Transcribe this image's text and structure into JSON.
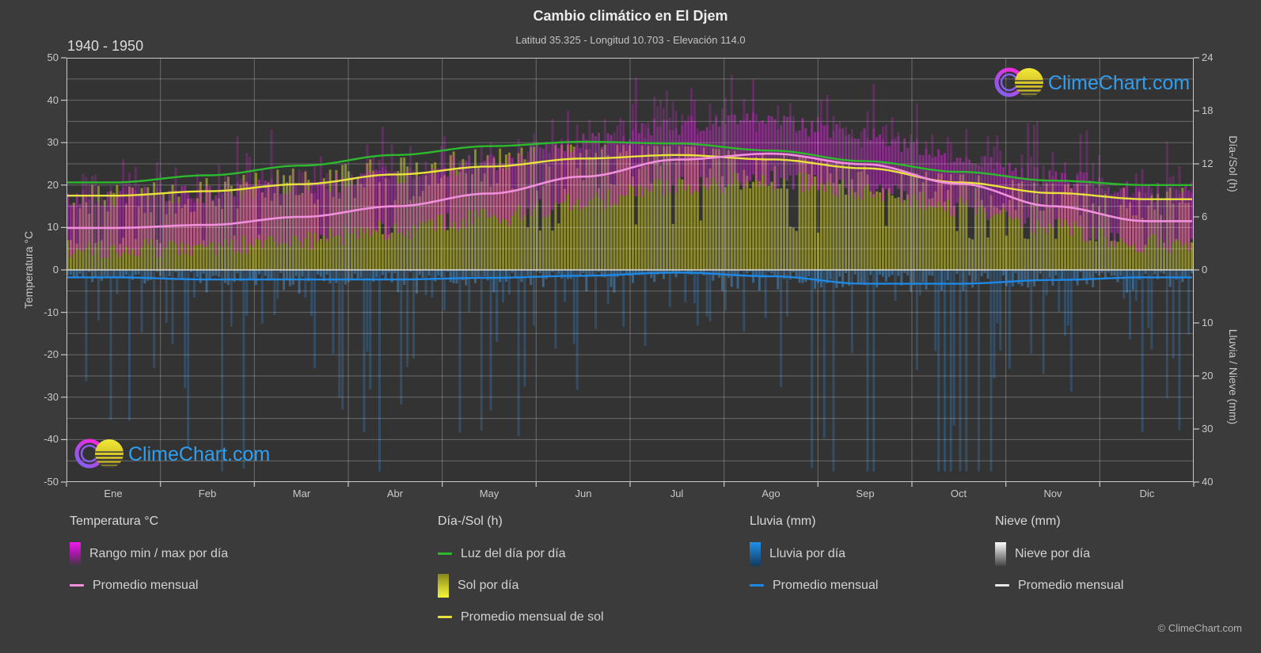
{
  "header": {
    "title": "Cambio climático en El Djem",
    "subtitle": "Latitud 35.325 - Longitud 10.703 - Elevación 114.0",
    "period": "1940 - 1950"
  },
  "brand": {
    "name": "ClimeChart.com",
    "copyright": "© ClimeChart.com"
  },
  "axes": {
    "temp": {
      "title": "Temperatura °C",
      "min": -50,
      "max": 50,
      "ticks": [
        50,
        40,
        30,
        20,
        10,
        0,
        -10,
        -20,
        -30,
        -40,
        -50
      ]
    },
    "daysun": {
      "title": "Día-/Sol (h)",
      "min": 0,
      "max": 24,
      "ticks": [
        24,
        18,
        12,
        6,
        0
      ]
    },
    "precip": {
      "title": "Lluvia / Nieve (mm)",
      "min": 0,
      "max": 40,
      "ticks": [
        10,
        20,
        30,
        40
      ],
      "inverted": true
    }
  },
  "legend": {
    "temperature": {
      "header": "Temperatura °C",
      "range_label": "Rango min / max por día",
      "avg_label": "Promedio mensual"
    },
    "daysun": {
      "header": "Día-/Sol (h)",
      "daylight_label": "Luz del día por día",
      "sun_label": "Sol por día",
      "sun_avg_label": "Promedio mensual de sol"
    },
    "rain": {
      "header": "Lluvia (mm)",
      "daily_label": "Lluvia por día",
      "avg_label": "Promedio mensual"
    },
    "snow": {
      "header": "Nieve (mm)",
      "daily_label": "Nieve por día",
      "avg_label": "Promedio mensual"
    }
  },
  "chart_data": {
    "type": "area",
    "title": "Cambio climático en El Djem",
    "subtitle": "Latitud 35.325 - Longitud 10.703 - Elevación 114.0",
    "period": "1940 - 1950",
    "categories": [
      "Ene",
      "Feb",
      "Mar",
      "Abr",
      "May",
      "Jun",
      "Jul",
      "Ago",
      "Sep",
      "Oct",
      "Nov",
      "Dic"
    ],
    "left_axis": {
      "label": "Temperatura °C",
      "range": [
        -50,
        50
      ],
      "gridline_step": 5
    },
    "right_axis_top": {
      "label": "Día-/Sol (h)",
      "range": [
        0,
        24
      ]
    },
    "right_axis_bottom": {
      "label": "Lluvia / Nieve (mm)",
      "range": [
        0,
        40
      ],
      "inverted": true
    },
    "grid": true,
    "legend_position": "bottom",
    "series": [
      {
        "name": "Luz del día por día (h)",
        "type": "line",
        "axis": "daysun",
        "values": [
          9.9,
          10.7,
          11.8,
          13.0,
          14.0,
          14.5,
          14.3,
          13.5,
          12.3,
          11.1,
          10.1,
          9.6
        ]
      },
      {
        "name": "Promedio mensual de sol (h)",
        "type": "line",
        "axis": "daysun",
        "values": [
          8.4,
          8.9,
          9.7,
          10.8,
          11.7,
          12.6,
          13.0,
          12.5,
          11.5,
          9.9,
          8.7,
          8.0
        ]
      },
      {
        "name": "Sol por día (h)",
        "type": "bar",
        "axis": "daysun",
        "values": [
          8.4,
          8.9,
          9.7,
          10.8,
          11.7,
          12.6,
          13.0,
          12.5,
          11.5,
          9.9,
          8.7,
          8.0
        ]
      },
      {
        "name": "Promedio mensual temperatura (°C)",
        "type": "line",
        "axis": "temp",
        "values": [
          9.9,
          10.6,
          12.5,
          15.0,
          18.0,
          22.0,
          26.0,
          27.4,
          24.9,
          20.3,
          15.0,
          11.5
        ]
      },
      {
        "name": "Temperatura mínima por día (°C)",
        "type": "bar-low",
        "axis": "temp",
        "values": [
          5.5,
          6.0,
          7.5,
          9.8,
          12.8,
          16.6,
          20.2,
          21.6,
          19.4,
          15.2,
          10.3,
          6.8
        ]
      },
      {
        "name": "Temperatura máxima por día (°C)",
        "type": "bar-high",
        "axis": "temp",
        "values": [
          16.2,
          16.9,
          18.8,
          21.2,
          24.5,
          29.0,
          33.0,
          34.0,
          30.3,
          26.0,
          20.8,
          17.2
        ]
      },
      {
        "name": "Promedio mensual lluvia (mm/día)",
        "type": "line",
        "axis": "precip",
        "values": [
          1.4,
          1.8,
          1.8,
          1.8,
          1.5,
          1.1,
          0.5,
          1.2,
          2.6,
          2.6,
          1.9,
          1.4
        ]
      },
      {
        "name": "Nieve por día (mm)",
        "type": "bar",
        "axis": "precip",
        "values": [
          0,
          0,
          0,
          0,
          0,
          0,
          0,
          0,
          0,
          0,
          0,
          0
        ]
      }
    ],
    "colors": {
      "background": "#3b3b3b",
      "plot_background": "#333333",
      "grid": "rgba(255,255,255,0.27)",
      "axis": "#c9c9c9",
      "zero_line": "#d8d8d8",
      "temp_range_bar": "rgba(216,42,216,0.50)",
      "temp_spike_bar": "rgba(216,42,216,0.26)",
      "temp_avg_line": "#f08fdc",
      "daylight_line": "#2db92d",
      "sun_bar": "rgba(193,191,45,0.62)",
      "sun_avg_line": "#e9e23e",
      "rain_bar": "rgba(68,150,220,0.50)",
      "rain_deep_bar": "rgba(58,120,180,0.38)",
      "rain_avg_line": "#1e88e5",
      "snow_avg_line": "#e8e8e8",
      "brand_blue": "#2f9ff2",
      "logo_ring": "#e82de8",
      "logo_ring_inner": "#8a5cf0",
      "logo_sun": "#e8d928"
    }
  }
}
